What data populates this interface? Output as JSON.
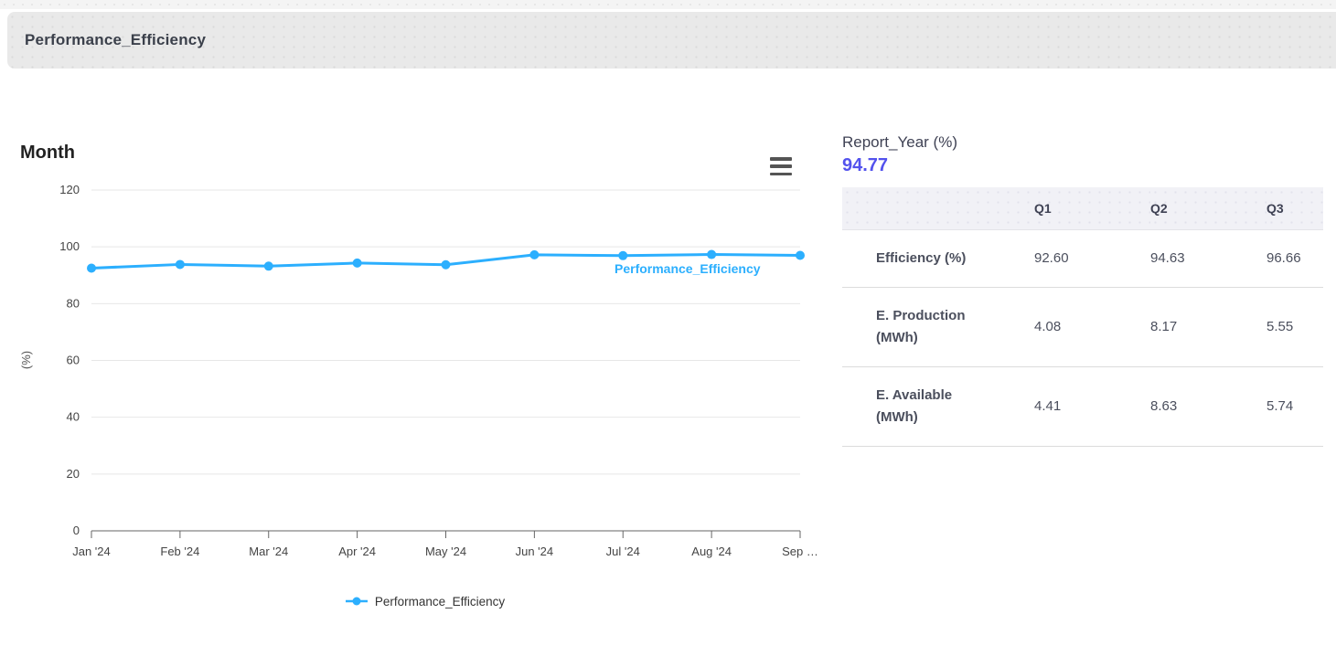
{
  "header": {
    "title": "Performance_Efficiency"
  },
  "chart_data": {
    "type": "line",
    "title": "Month",
    "ylabel": "(%)",
    "ylim": [
      0,
      120
    ],
    "ytick_step": 20,
    "grid": true,
    "legend_position": "bottom",
    "x_tick_labels": [
      "Jan '24",
      "Feb '24",
      "Mar '24",
      "Apr '24",
      "May '24",
      "Jun '24",
      "Jul '24",
      "Aug '24",
      "Sep …"
    ],
    "series": [
      {
        "name": "Performance_Efficiency",
        "color": "#2caffe",
        "values": [
          92.5,
          93.8,
          93.2,
          94.3,
          93.7,
          97.2,
          96.9,
          97.3,
          97.0
        ]
      }
    ]
  },
  "summary": {
    "label": "Report_Year (%)",
    "value": "94.77",
    "value_color": "#5352ed"
  },
  "table": {
    "columns": [
      "",
      "Q1",
      "Q2",
      "Q3"
    ],
    "rows": [
      {
        "label": "Efficiency (%)",
        "values": [
          "92.60",
          "94.63",
          "96.66"
        ]
      },
      {
        "label": "E. Production (MWh)",
        "values": [
          "4.08",
          "8.17",
          "5.55"
        ]
      },
      {
        "label": "E. Available (MWh)",
        "values": [
          "4.41",
          "8.63",
          "5.74"
        ]
      }
    ]
  }
}
